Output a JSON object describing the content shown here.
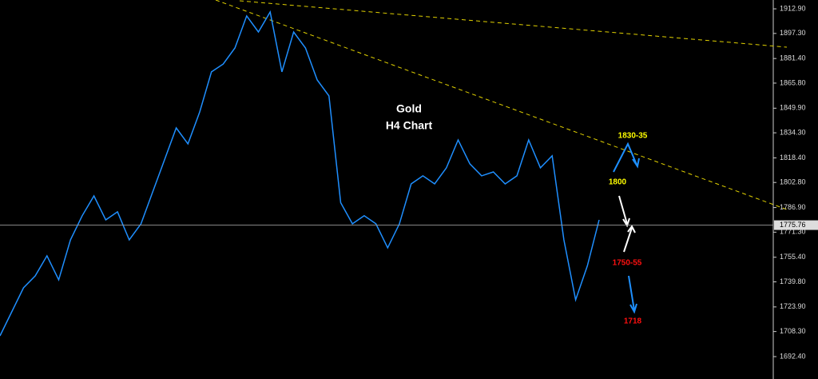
{
  "chart_data": {
    "type": "line",
    "title": "Gold",
    "subtitle": "H4 Chart",
    "values": [
      1705.6,
      1720.8,
      1736.0,
      1743.6,
      1756.3,
      1741.1,
      1766.4,
      1781.7,
      1794.3,
      1779.1,
      1784.2,
      1766.4,
      1776.6,
      1796.9,
      1817.1,
      1837.4,
      1827.3,
      1847.5,
      1872.9,
      1877.9,
      1888.1,
      1908.4,
      1898.2,
      1910.9,
      1872.9,
      1898.2,
      1888.1,
      1867.8,
      1857.7,
      1790.0,
      1776.6,
      1781.7,
      1776.6,
      1761.4,
      1776.6,
      1801.9,
      1807.0,
      1801.9,
      1812.1,
      1829.8,
      1814.6,
      1807.0,
      1809.5,
      1801.9,
      1807.0,
      1829.8,
      1812.1,
      1819.7,
      1766.4,
      1728.4,
      1750.0,
      1779.1
    ],
    "color": "#1f8fff",
    "current_price": 1775.76,
    "ylim": [
      1678.2,
      1918.5
    ],
    "yticks": [
      {
        "value": 1912.9,
        "label": "1912.90"
      },
      {
        "value": 1897.3,
        "label": "1897.30"
      },
      {
        "value": 1881.4,
        "label": "1881.40"
      },
      {
        "value": 1865.8,
        "label": "1865.80"
      },
      {
        "value": 1849.9,
        "label": "1849.90"
      },
      {
        "value": 1834.3,
        "label": "1834.30"
      },
      {
        "value": 1818.4,
        "label": "1818.40"
      },
      {
        "value": 1802.8,
        "label": "1802.80"
      },
      {
        "value": 1786.9,
        "label": "1786.90"
      },
      {
        "value": 1771.3,
        "label": "1771.30"
      },
      {
        "value": 1755.4,
        "label": "1755.40"
      },
      {
        "value": 1739.8,
        "label": "1739.80"
      },
      {
        "value": 1723.9,
        "label": "1723.90"
      },
      {
        "value": 1708.3,
        "label": "1708.30"
      },
      {
        "value": 1692.4,
        "label": "1692.40"
      }
    ],
    "annotations": [
      "1830-35",
      "1800",
      "1750-55",
      "1718"
    ]
  }
}
